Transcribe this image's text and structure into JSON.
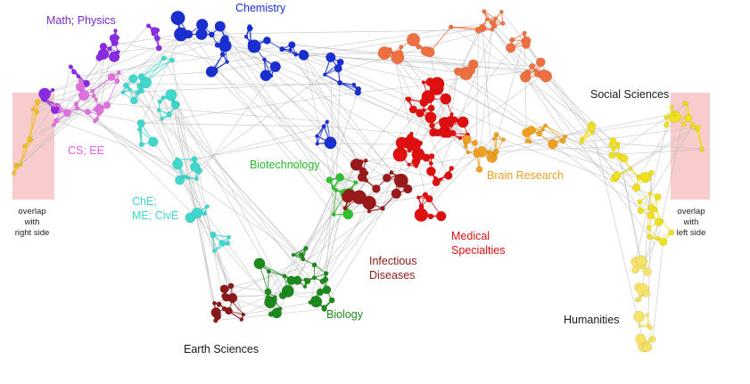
{
  "map": {
    "labels": [
      {
        "key": "math",
        "text": "Math; Physics",
        "color": "#7a2ac4"
      },
      {
        "key": "chem",
        "text": "Chemistry",
        "color": "#1a2fd0"
      },
      {
        "key": "cs",
        "text": "CS; EE",
        "color": "#e060e0"
      },
      {
        "key": "che1",
        "text": "ChE;",
        "color": "#3ed6cc"
      },
      {
        "key": "che2",
        "text": "ME; CivE",
        "color": "#3ed6cc"
      },
      {
        "key": "biotech",
        "text": "Biotechnology",
        "color": "#2ab82a"
      },
      {
        "key": "biology",
        "text": "Biology",
        "color": "#1e8a1e"
      },
      {
        "key": "infect1",
        "text": "Infectious",
        "color": "#8a1a1a"
      },
      {
        "key": "infect2",
        "text": "Diseases",
        "color": "#8a1a1a"
      },
      {
        "key": "med1",
        "text": "Medical",
        "color": "#e01010"
      },
      {
        "key": "med2",
        "text": "Specialties",
        "color": "#e01010"
      },
      {
        "key": "brain",
        "text": "Brain Research",
        "color": "#e8a020"
      },
      {
        "key": "social",
        "text": "Social Sciences",
        "color": "#1a1a1a"
      },
      {
        "key": "humanities",
        "text": "Humanities",
        "color": "#1a1a1a"
      },
      {
        "key": "earth",
        "text": "Earth Sciences",
        "color": "#1a1a1a"
      }
    ],
    "overlap_left": [
      "overlap",
      "with",
      "right side"
    ],
    "overlap_right": [
      "overlap",
      "with",
      "left side"
    ],
    "overlap_fill": "#f8cccc",
    "edge_color": "#bdbdbd"
  }
}
